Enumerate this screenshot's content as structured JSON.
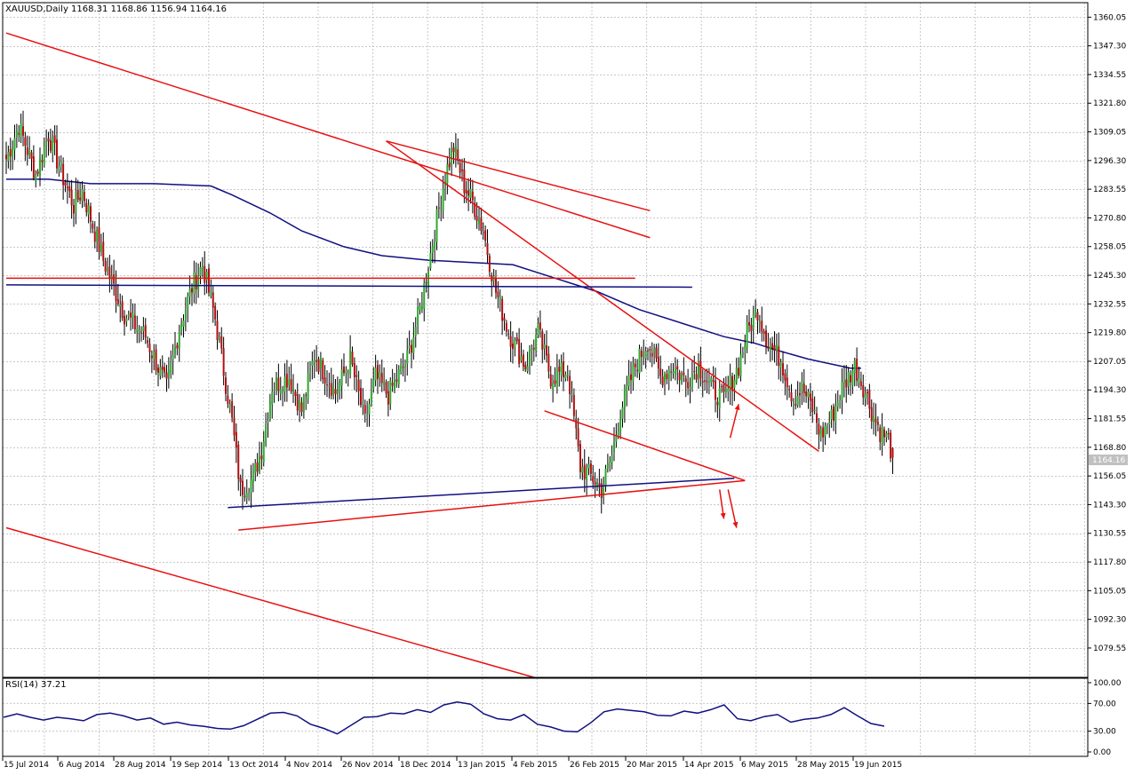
{
  "header": {
    "symbol_line": "XAUUSD,Daily  1168.31 1168.86 1156.94 1164.16"
  },
  "rsi_header": "RSI(14) 37.21",
  "colors": {
    "bull": "#2ea82e",
    "bear": "#b01010",
    "wick": "#000000",
    "trend_red": "#e81010",
    "trend_blue": "#101080",
    "grid": "#c8c8c8",
    "price_tag_bg": "#c0c0c0"
  },
  "price_tag": "1164.16",
  "chart_data": [
    {
      "type": "candlestick",
      "title": "XAUUSD,Daily",
      "ohlc_header": {
        "open": 1168.31,
        "high": 1168.86,
        "low": 1156.94,
        "close": 1164.16
      },
      "ylim": [
        1066.5,
        1366.5
      ],
      "y_ticks": [
        "1360.05",
        "1347.30",
        "1334.55",
        "1321.80",
        "1309.05",
        "1296.30",
        "1283.55",
        "1270.80",
        "1258.05",
        "1245.30",
        "1232.55",
        "1219.80",
        "1207.05",
        "1194.30",
        "1181.55",
        "1168.80",
        "1156.05",
        "1143.30",
        "1130.55",
        "1117.80",
        "1105.05",
        "1092.30",
        "1079.55"
      ],
      "x_ticks": [
        "15 Jul 2014",
        "6 Aug 2014",
        "28 Aug 2014",
        "19 Sep 2014",
        "13 Oct 2014",
        "4 Nov 2014",
        "26 Nov 2014",
        "18 Dec 2014",
        "13 Jan 2015",
        "4 Feb 2015",
        "26 Feb 2015",
        "20 Mar 2015",
        "14 Apr 2015",
        "6 May 2015",
        "28 May 2015",
        "19 Jun 2015"
      ],
      "close_anchors": [
        [
          0,
          1297
        ],
        [
          6,
          1312
        ],
        [
          14,
          1290
        ],
        [
          20,
          1308
        ],
        [
          26,
          1291
        ],
        [
          32,
          1276
        ],
        [
          36,
          1283
        ],
        [
          46,
          1252
        ],
        [
          56,
          1228
        ],
        [
          66,
          1218
        ],
        [
          76,
          1195
        ],
        [
          82,
          1222
        ],
        [
          88,
          1240
        ],
        [
          93,
          1250
        ],
        [
          99,
          1226
        ],
        [
          107,
          1180
        ],
        [
          111,
          1150
        ],
        [
          117,
          1155
        ],
        [
          121,
          1168
        ],
        [
          126,
          1196
        ],
        [
          134,
          1200
        ],
        [
          140,
          1185
        ],
        [
          146,
          1210
        ],
        [
          156,
          1193
        ],
        [
          163,
          1208
        ],
        [
          170,
          1180
        ],
        [
          175,
          1200
        ],
        [
          181,
          1192
        ],
        [
          190,
          1208
        ],
        [
          196,
          1230
        ],
        [
          203,
          1265
        ],
        [
          208,
          1290
        ],
        [
          212,
          1302
        ],
        [
          217,
          1285
        ],
        [
          221,
          1278
        ],
        [
          226,
          1265
        ],
        [
          232,
          1238
        ],
        [
          238,
          1220
        ],
        [
          246,
          1205
        ],
        [
          252,
          1220
        ],
        [
          258,
          1200
        ],
        [
          266,
          1203
        ],
        [
          272,
          1160
        ],
        [
          278,
          1155
        ],
        [
          282,
          1150
        ],
        [
          287,
          1165
        ],
        [
          291,
          1185
        ],
        [
          298,
          1205
        ],
        [
          304,
          1216
        ],
        [
          310,
          1200
        ],
        [
          316,
          1205
        ],
        [
          322,
          1198
        ],
        [
          328,
          1205
        ],
        [
          334,
          1195
        ],
        [
          340,
          1190
        ],
        [
          347,
          1205
        ],
        [
          351,
          1220
        ],
        [
          356,
          1230
        ],
        [
          361,
          1215
        ],
        [
          367,
          1208
        ],
        [
          373,
          1190
        ],
        [
          377,
          1195
        ],
        [
          382,
          1186
        ],
        [
          386,
          1174
        ],
        [
          391,
          1182
        ],
        [
          396,
          1195
        ],
        [
          402,
          1205
        ],
        [
          406,
          1196
        ],
        [
          410,
          1185
        ],
        [
          414,
          1176
        ],
        [
          418,
          1172
        ],
        [
          420,
          1164
        ]
      ],
      "ma_line": [
        [
          0,
          1288
        ],
        [
          20,
          1288
        ],
        [
          40,
          1286
        ],
        [
          70,
          1286
        ],
        [
          97,
          1285
        ],
        [
          107,
          1281
        ],
        [
          125,
          1273
        ],
        [
          140,
          1265
        ],
        [
          160,
          1258
        ],
        [
          178,
          1254
        ],
        [
          200,
          1252
        ],
        [
          220,
          1251
        ],
        [
          240,
          1250
        ],
        [
          260,
          1244
        ],
        [
          280,
          1238
        ],
        [
          300,
          1230
        ],
        [
          320,
          1224
        ],
        [
          340,
          1218
        ],
        [
          355,
          1215
        ],
        [
          365,
          1212
        ],
        [
          380,
          1208
        ],
        [
          400,
          1204
        ],
        [
          405,
          1204
        ]
      ],
      "trendlines": [
        {
          "color": "red",
          "from": [
            0,
            1353
          ],
          "to": [
            305,
            1262
          ]
        },
        {
          "color": "red",
          "from": [
            180,
            1305
          ],
          "to": [
            305,
            1274
          ]
        },
        {
          "color": "red",
          "from": [
            180,
            1305
          ],
          "to": [
            385,
            1167
          ]
        },
        {
          "color": "red",
          "from": [
            255,
            1185
          ],
          "to": [
            350,
            1154
          ]
        },
        {
          "color": "red",
          "from": [
            110,
            1132
          ],
          "to": [
            350,
            1154
          ]
        },
        {
          "color": "red",
          "from": [
            0,
            1133
          ],
          "to": [
            250,
            1066.5
          ]
        },
        {
          "color": "red",
          "from": [
            0,
            1244
          ],
          "to": [
            298,
            1244
          ]
        },
        {
          "color": "blue",
          "from": [
            0,
            1241
          ],
          "to": [
            325,
            1240
          ]
        },
        {
          "color": "blue",
          "from": [
            105,
            1142
          ],
          "to": [
            345,
            1155
          ]
        }
      ],
      "arrows": [
        {
          "from": [
            343,
            1173
          ],
          "to": [
            347,
            1188
          ],
          "direction": "up"
        },
        {
          "from": [
            338,
            1150
          ],
          "to": [
            340,
            1137
          ],
          "direction": "down"
        },
        {
          "from": [
            342,
            1150
          ],
          "to": [
            346,
            1133
          ],
          "direction": "down"
        }
      ]
    },
    {
      "type": "line",
      "title": "RSI(14) 37.21",
      "ylim": [
        0,
        100
      ],
      "y_ticks": [
        "100.00",
        "70.00",
        "30.00",
        "0.00"
      ],
      "values": [
        50,
        55,
        50,
        46,
        50,
        48,
        45,
        54,
        56,
        52,
        46,
        49,
        40,
        43,
        39,
        37,
        34,
        33,
        38,
        47,
        56,
        57,
        52,
        40,
        34,
        26,
        38,
        50,
        51,
        56,
        55,
        61,
        57,
        68,
        72,
        69,
        55,
        48,
        46,
        54,
        40,
        36,
        30,
        29,
        42,
        58,
        62,
        60,
        58,
        53,
        52,
        59,
        56,
        61,
        68,
        48,
        45,
        51,
        54,
        43,
        47,
        49,
        54,
        64,
        52,
        41,
        37.21
      ]
    }
  ]
}
